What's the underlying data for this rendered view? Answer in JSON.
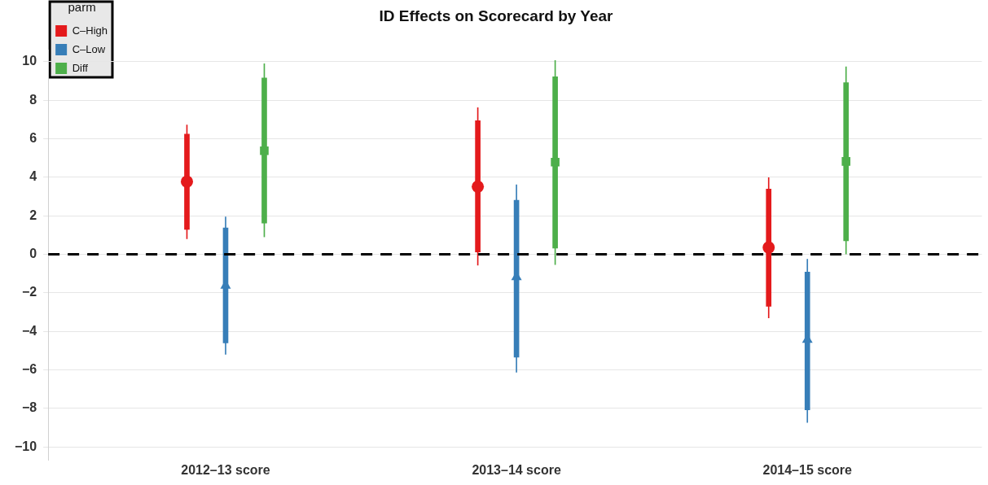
{
  "chart_data": {
    "type": "box",
    "title": "ID Effects on Scorecard by Year",
    "categories": [
      "2012–13 score",
      "2013–14 score",
      "2014–15 score"
    ],
    "series": [
      {
        "name": "C–High",
        "color": "#e41a1c",
        "marker": "circle",
        "boxes": [
          {
            "low": 0.81,
            "q1": 1.3,
            "median": 3.78,
            "q3": 6.25,
            "high": 6.72
          },
          {
            "low": -0.56,
            "q1": 0.12,
            "median": 3.52,
            "q3": 6.94,
            "high": 7.62
          },
          {
            "low": -3.3,
            "q1": -2.7,
            "median": 0.36,
            "q3": 3.39,
            "high": 3.98
          }
        ]
      },
      {
        "name": "C–Low",
        "color": "#377eb8",
        "marker": "triangle",
        "boxes": [
          {
            "low": -5.19,
            "q1": -4.6,
            "median": -1.62,
            "q3": 1.37,
            "high": 1.95
          },
          {
            "low": -6.12,
            "q1": -5.34,
            "median": -1.18,
            "q3": 2.81,
            "high": 3.61
          },
          {
            "low": -8.73,
            "q1": -8.07,
            "median": -4.43,
            "q3": -0.92,
            "high": -0.25
          }
        ]
      },
      {
        "name": "Diff",
        "color": "#4daf4a",
        "marker": "square",
        "boxes": [
          {
            "low": 0.91,
            "q1": 1.63,
            "median": 5.38,
            "q3": 9.16,
            "high": 9.9
          },
          {
            "low": -0.53,
            "q1": 0.33,
            "median": 4.79,
            "q3": 9.22,
            "high": 10.07
          },
          {
            "low": 0.02,
            "q1": 0.71,
            "median": 4.83,
            "q3": 8.92,
            "high": 9.74
          }
        ]
      }
    ],
    "ylim": [
      -10.7,
      10.6
    ],
    "yticks": [
      -10,
      -8,
      -6,
      -4,
      -2,
      0,
      2,
      4,
      6,
      8,
      10
    ],
    "grid": "y",
    "ref_lines": [
      {
        "axis": "y",
        "value": 0,
        "color": "#000000",
        "line_style": "dashed"
      }
    ],
    "legend": "top left",
    "legend_title": "parm"
  }
}
